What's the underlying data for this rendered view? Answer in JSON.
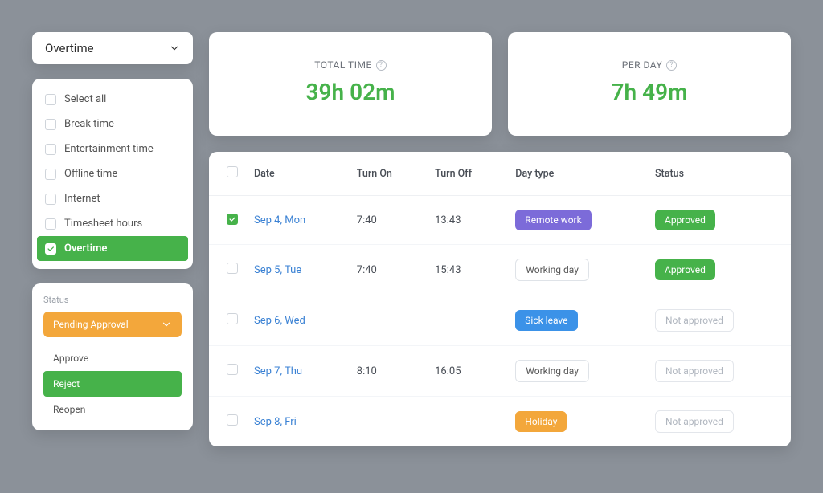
{
  "colors": {
    "green": "#46b24a",
    "orange": "#f3a73b",
    "purple": "#7c6bd9",
    "blue": "#3b92e8",
    "cardBg": "#ffffff",
    "pageBg": "#8b9199"
  },
  "selector": {
    "label": "Overtime"
  },
  "filters": {
    "items": [
      {
        "label": "Select all",
        "checked": false
      },
      {
        "label": "Break time",
        "checked": false
      },
      {
        "label": "Entertainment time",
        "checked": false
      },
      {
        "label": "Offline time",
        "checked": false
      },
      {
        "label": "Internet",
        "checked": false
      },
      {
        "label": "Timesheet hours",
        "checked": false
      },
      {
        "label": "Overtime",
        "checked": true
      }
    ]
  },
  "statusPanel": {
    "label": "Status",
    "selected": "Pending Approval",
    "options": [
      {
        "label": "Approve",
        "selected": false
      },
      {
        "label": "Reject",
        "selected": true
      },
      {
        "label": "Reopen",
        "selected": false
      }
    ]
  },
  "metrics": {
    "total": {
      "label": "TOTAL TIME",
      "value": "39h 02m"
    },
    "perDay": {
      "label": "PER DAY",
      "value": "7h 49m"
    }
  },
  "table": {
    "columns": {
      "date": "Date",
      "on": "Turn On",
      "off": "Turn Off",
      "type": "Day type",
      "status": "Status"
    },
    "rows": [
      {
        "checked": true,
        "date": "Sep 4, Mon",
        "on": "7:40",
        "off": "13:43",
        "type": "Remote work",
        "typeStyle": "purple",
        "status": "Approved",
        "statusStyle": "green"
      },
      {
        "checked": false,
        "date": "Sep 5, Tue",
        "on": "7:40",
        "off": "15:43",
        "type": "Working day",
        "typeStyle": "outline",
        "status": "Approved",
        "statusStyle": "green"
      },
      {
        "checked": false,
        "date": "Sep 6, Wed",
        "on": "",
        "off": "",
        "type": "Sick leave",
        "typeStyle": "blue",
        "status": "Not approved",
        "statusStyle": "na"
      },
      {
        "checked": false,
        "date": "Sep 7, Thu",
        "on": "8:10",
        "off": "16:05",
        "type": "Working day",
        "typeStyle": "outline",
        "status": "Not approved",
        "statusStyle": "na"
      },
      {
        "checked": false,
        "date": "Sep 8, Fri",
        "on": "",
        "off": "",
        "type": "Holiday",
        "typeStyle": "orange",
        "status": "Not approved",
        "statusStyle": "na"
      }
    ]
  }
}
